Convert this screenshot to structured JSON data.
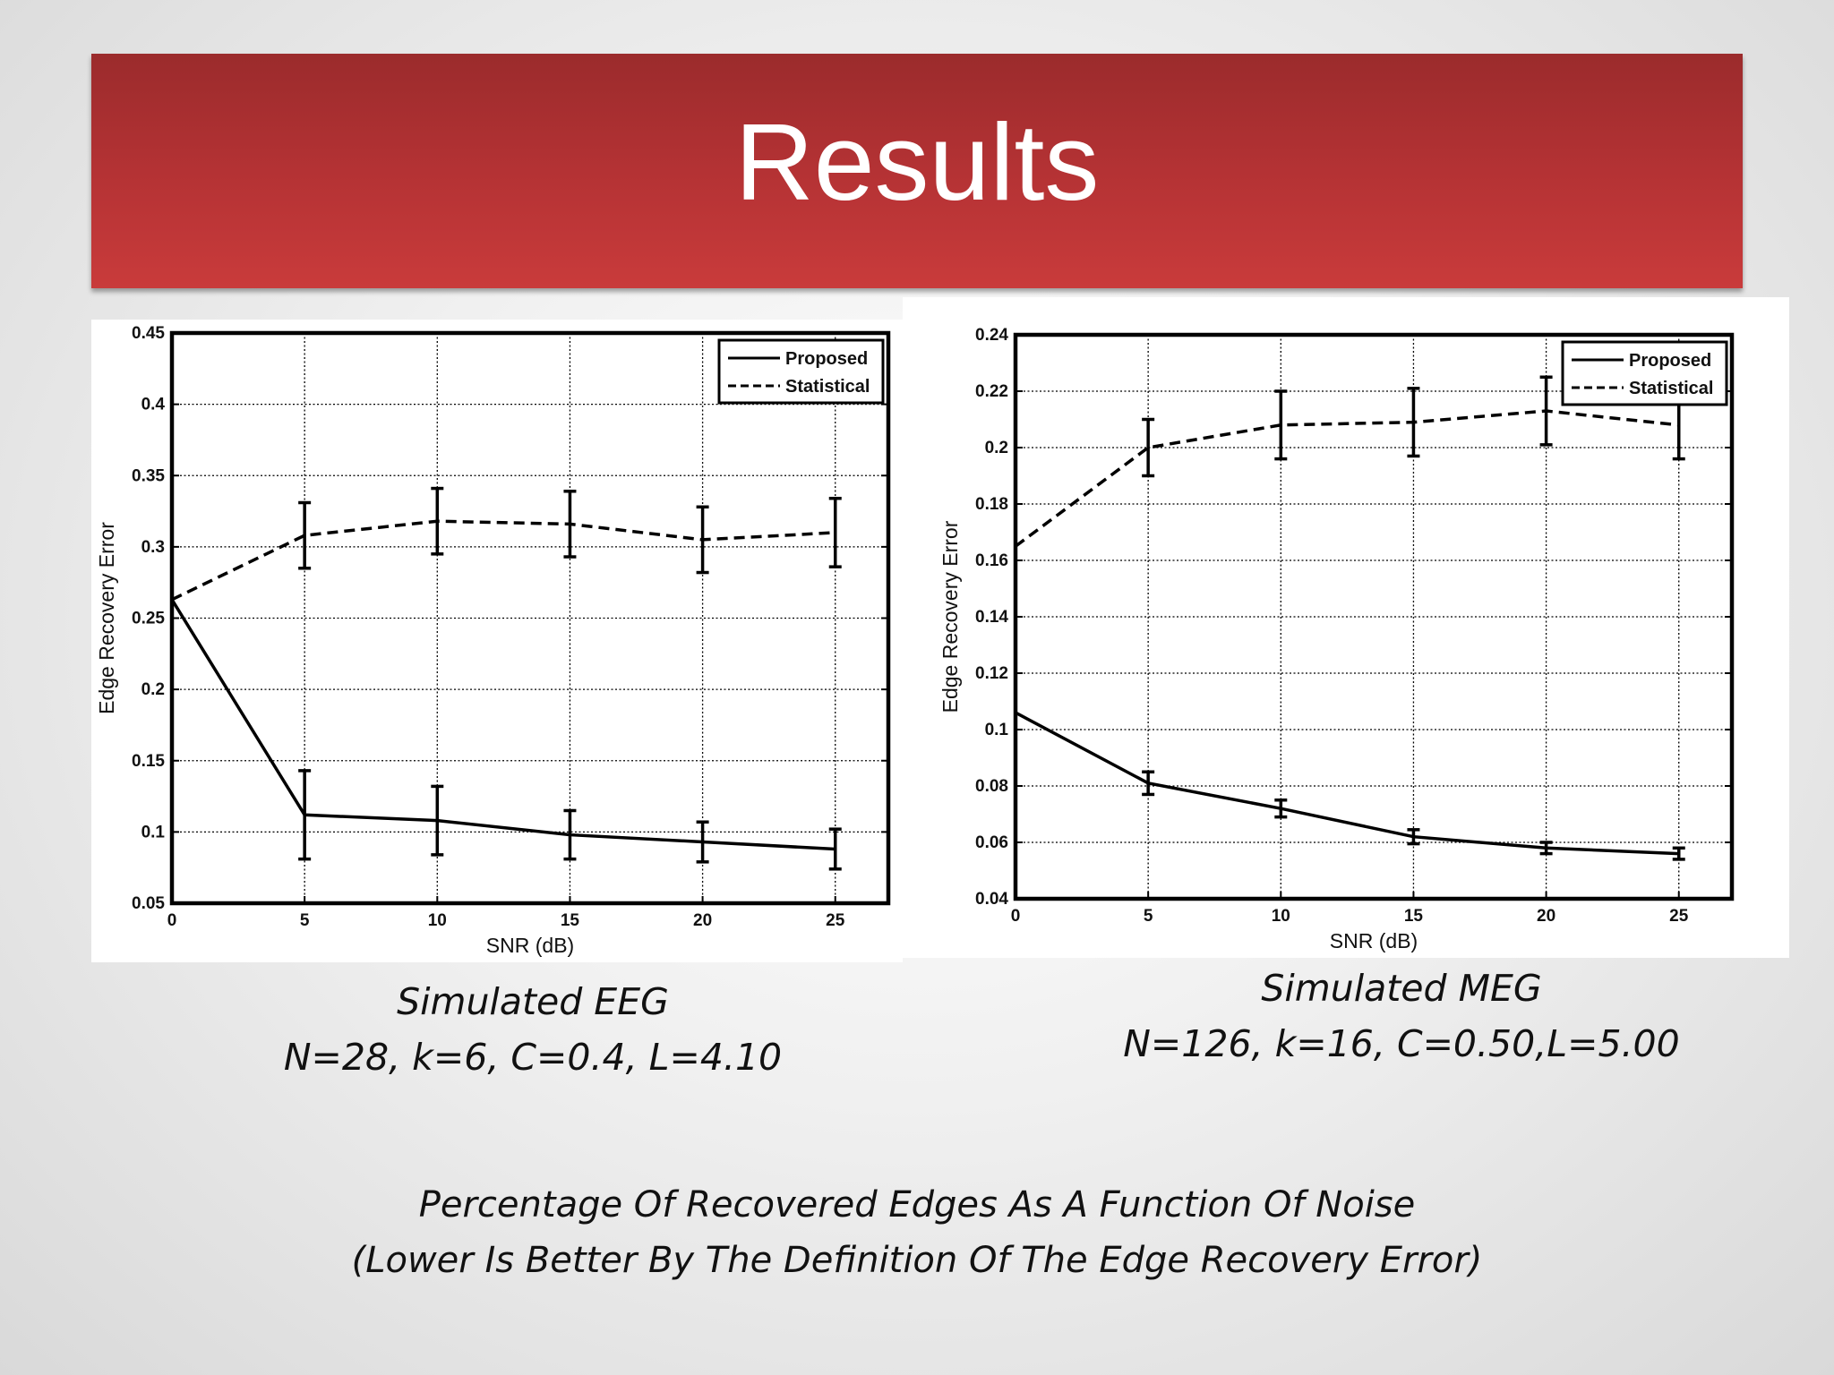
{
  "slide": {
    "title": "Results",
    "title_bar_color": "#b43234",
    "captions": {
      "eeg": {
        "line1": "Simulated EEG",
        "line2": "N=28, k=6, C=0.4, L=4.10"
      },
      "meg": {
        "line1": "Simulated MEG",
        "line2": "N=126, k=16, C=0.50,L=5.00"
      }
    },
    "footer": {
      "line1": "Percentage Of Recovered Edges As A Function Of Noise",
      "line2": "(Lower Is Better By The Definition Of The Edge Recovery Error)"
    }
  },
  "chart_data": [
    {
      "id": "eeg",
      "type": "line",
      "xlabel": "SNR (dB)",
      "ylabel": "Edge Recovery Error",
      "x": [
        0,
        5,
        10,
        15,
        20,
        25
      ],
      "xlim": [
        0,
        27
      ],
      "ylim": [
        0.05,
        0.45
      ],
      "xticks": [
        "0",
        "5",
        "10",
        "15",
        "20",
        "25"
      ],
      "yticks": [
        "0.05",
        "0.1",
        "0.15",
        "0.2",
        "0.25",
        "0.3",
        "0.35",
        "0.4",
        "0.45"
      ],
      "grid": true,
      "legend_position": "top-right",
      "series": [
        {
          "name": "Proposed",
          "style": "solid",
          "values": [
            0.263,
            0.112,
            0.108,
            0.098,
            0.093,
            0.088
          ],
          "error": [
            null,
            0.031,
            0.024,
            0.017,
            0.014,
            0.014
          ]
        },
        {
          "name": "Statistical",
          "style": "dashed",
          "values": [
            0.263,
            0.308,
            0.318,
            0.316,
            0.305,
            0.31
          ],
          "error": [
            null,
            0.023,
            0.023,
            0.023,
            0.023,
            0.024
          ]
        }
      ]
    },
    {
      "id": "meg",
      "type": "line",
      "xlabel": "SNR (dB)",
      "ylabel": "Edge Recovery Error",
      "x": [
        0,
        5,
        10,
        15,
        20,
        25
      ],
      "xlim": [
        0,
        27
      ],
      "ylim": [
        0.04,
        0.24
      ],
      "xticks": [
        "0",
        "5",
        "10",
        "15",
        "20",
        "25"
      ],
      "yticks": [
        "0.04",
        "0.06",
        "0.08",
        "0.1",
        "0.12",
        "0.14",
        "0.16",
        "0.18",
        "0.2",
        "0.22",
        "0.24"
      ],
      "grid": true,
      "legend_position": "top-right",
      "series": [
        {
          "name": "Proposed",
          "style": "solid",
          "values": [
            0.106,
            0.081,
            0.072,
            0.062,
            0.058,
            0.056
          ],
          "error": [
            null,
            0.004,
            0.003,
            0.0025,
            0.002,
            0.002
          ]
        },
        {
          "name": "Statistical",
          "style": "dashed",
          "values": [
            0.165,
            0.2,
            0.208,
            0.209,
            0.213,
            0.208
          ],
          "error": [
            null,
            0.01,
            0.012,
            0.012,
            0.012,
            0.012
          ]
        }
      ]
    }
  ]
}
